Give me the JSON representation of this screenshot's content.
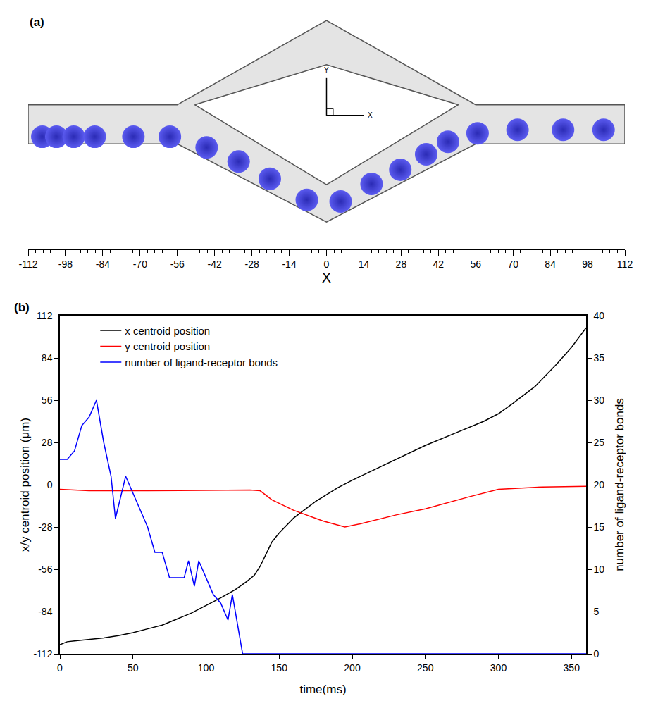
{
  "chart_data": [
    {
      "type": "scatter",
      "title": "(a)",
      "x_label": "X",
      "xlim": [
        -112,
        112
      ],
      "xticks": [
        -112,
        -98,
        -84,
        -70,
        -56,
        -42,
        -28,
        -14,
        0,
        14,
        28,
        42,
        56,
        70,
        84,
        98,
        112
      ],
      "ylim": [
        -48,
        40
      ],
      "tick_labels": "x",
      "grid": false,
      "color": "#5b5bf0",
      "marker": "circle",
      "x": [
        -106.7,
        -101.4,
        -94.9,
        -87,
        -72.5,
        -58.8,
        -45,
        -33,
        -21.3,
        -7.4,
        5.3,
        16.9,
        27.7,
        37.4,
        45.6,
        56.7,
        71.7,
        88.8,
        104
      ],
      "values": [
        -6,
        -6,
        -6,
        -6,
        -6,
        -6,
        -10,
        -15.3,
        -21.8,
        -29.7,
        -30.3,
        -23.7,
        -18.4,
        -12.6,
        -7.9,
        -4.7,
        -3.4,
        -3.4,
        -3.4
      ],
      "channel": {
        "outer": {
          "x": [
            -112,
            -56,
            0,
            56,
            112,
            112,
            56,
            0,
            -56,
            -112
          ],
          "y": [
            6,
            6,
            37.6,
            6,
            6,
            -8.7,
            -8.7,
            -38,
            -8.7,
            -8.7
          ]
        },
        "inner": {
          "x": [
            -49.5,
            0,
            49.5,
            0
          ],
          "y": [
            6,
            21,
            6,
            -24
          ]
        }
      },
      "axes_icon": {
        "x_label": "X",
        "y_label": "Y"
      }
    },
    {
      "type": "line",
      "title": "(b)",
      "x_label": "time(ms)",
      "y_label": "x/y centroid position (μm)",
      "y2_label": "number of ligand-receptor bonds",
      "xlim": [
        0,
        360
      ],
      "xticks": [
        0,
        50,
        100,
        150,
        200,
        250,
        300,
        350
      ],
      "ylim": [
        -112,
        112
      ],
      "yticks": [
        -112,
        -84,
        -56,
        -28,
        0,
        28,
        56,
        84,
        112
      ],
      "y2lim": [
        0,
        40
      ],
      "y2ticks": [
        0,
        5,
        10,
        15,
        20,
        25,
        30,
        35,
        40
      ],
      "legend": "top-left",
      "grid": false,
      "series": [
        {
          "name": "x centroid position",
          "color": "#000000",
          "x": [
            0,
            5,
            10,
            20,
            30,
            40,
            50,
            60,
            70,
            80,
            90,
            100,
            110,
            120,
            128,
            133,
            137,
            141,
            145,
            150,
            160,
            175,
            190,
            200,
            215,
            230,
            250,
            270,
            290,
            300,
            310,
            325,
            340,
            350,
            360
          ],
          "values": [
            -106,
            -104,
            -103.5,
            -102.5,
            -101.5,
            -100,
            -98,
            -95.5,
            -93,
            -89,
            -85,
            -80,
            -75,
            -69.5,
            -64,
            -60,
            -54,
            -46,
            -38,
            -32,
            -22,
            -11,
            -2,
            3,
            10,
            17,
            26,
            34,
            42,
            47,
            54,
            65,
            80,
            91,
            104
          ]
        },
        {
          "name": "y centroid position",
          "color": "#ff0000",
          "x": [
            0,
            20,
            60,
            100,
            130,
            137,
            145,
            160,
            180,
            195,
            205,
            230,
            250,
            280,
            300,
            330,
            360
          ],
          "values": [
            -3,
            -4,
            -4,
            -3.8,
            -3.5,
            -4,
            -10,
            -17,
            -24,
            -28,
            -26,
            -20,
            -16,
            -8,
            -3,
            -1.5,
            -1
          ]
        },
        {
          "name": "number of ligand-receptor bonds",
          "color": "#0000ff",
          "axis": "y2",
          "x": [
            0,
            5,
            10,
            15,
            20,
            25,
            30,
            35,
            38,
            45,
            50,
            55,
            60,
            65,
            70,
            75,
            80,
            85,
            88,
            92,
            95,
            100,
            105,
            110,
            115,
            118,
            122,
            125,
            360
          ],
          "values": [
            23,
            23,
            24,
            27,
            28,
            30,
            25,
            21,
            16,
            21,
            19,
            17,
            15,
            12,
            12,
            9,
            9,
            9,
            11,
            8,
            11,
            9,
            7,
            6,
            4,
            7,
            3,
            0,
            0
          ]
        }
      ]
    }
  ]
}
